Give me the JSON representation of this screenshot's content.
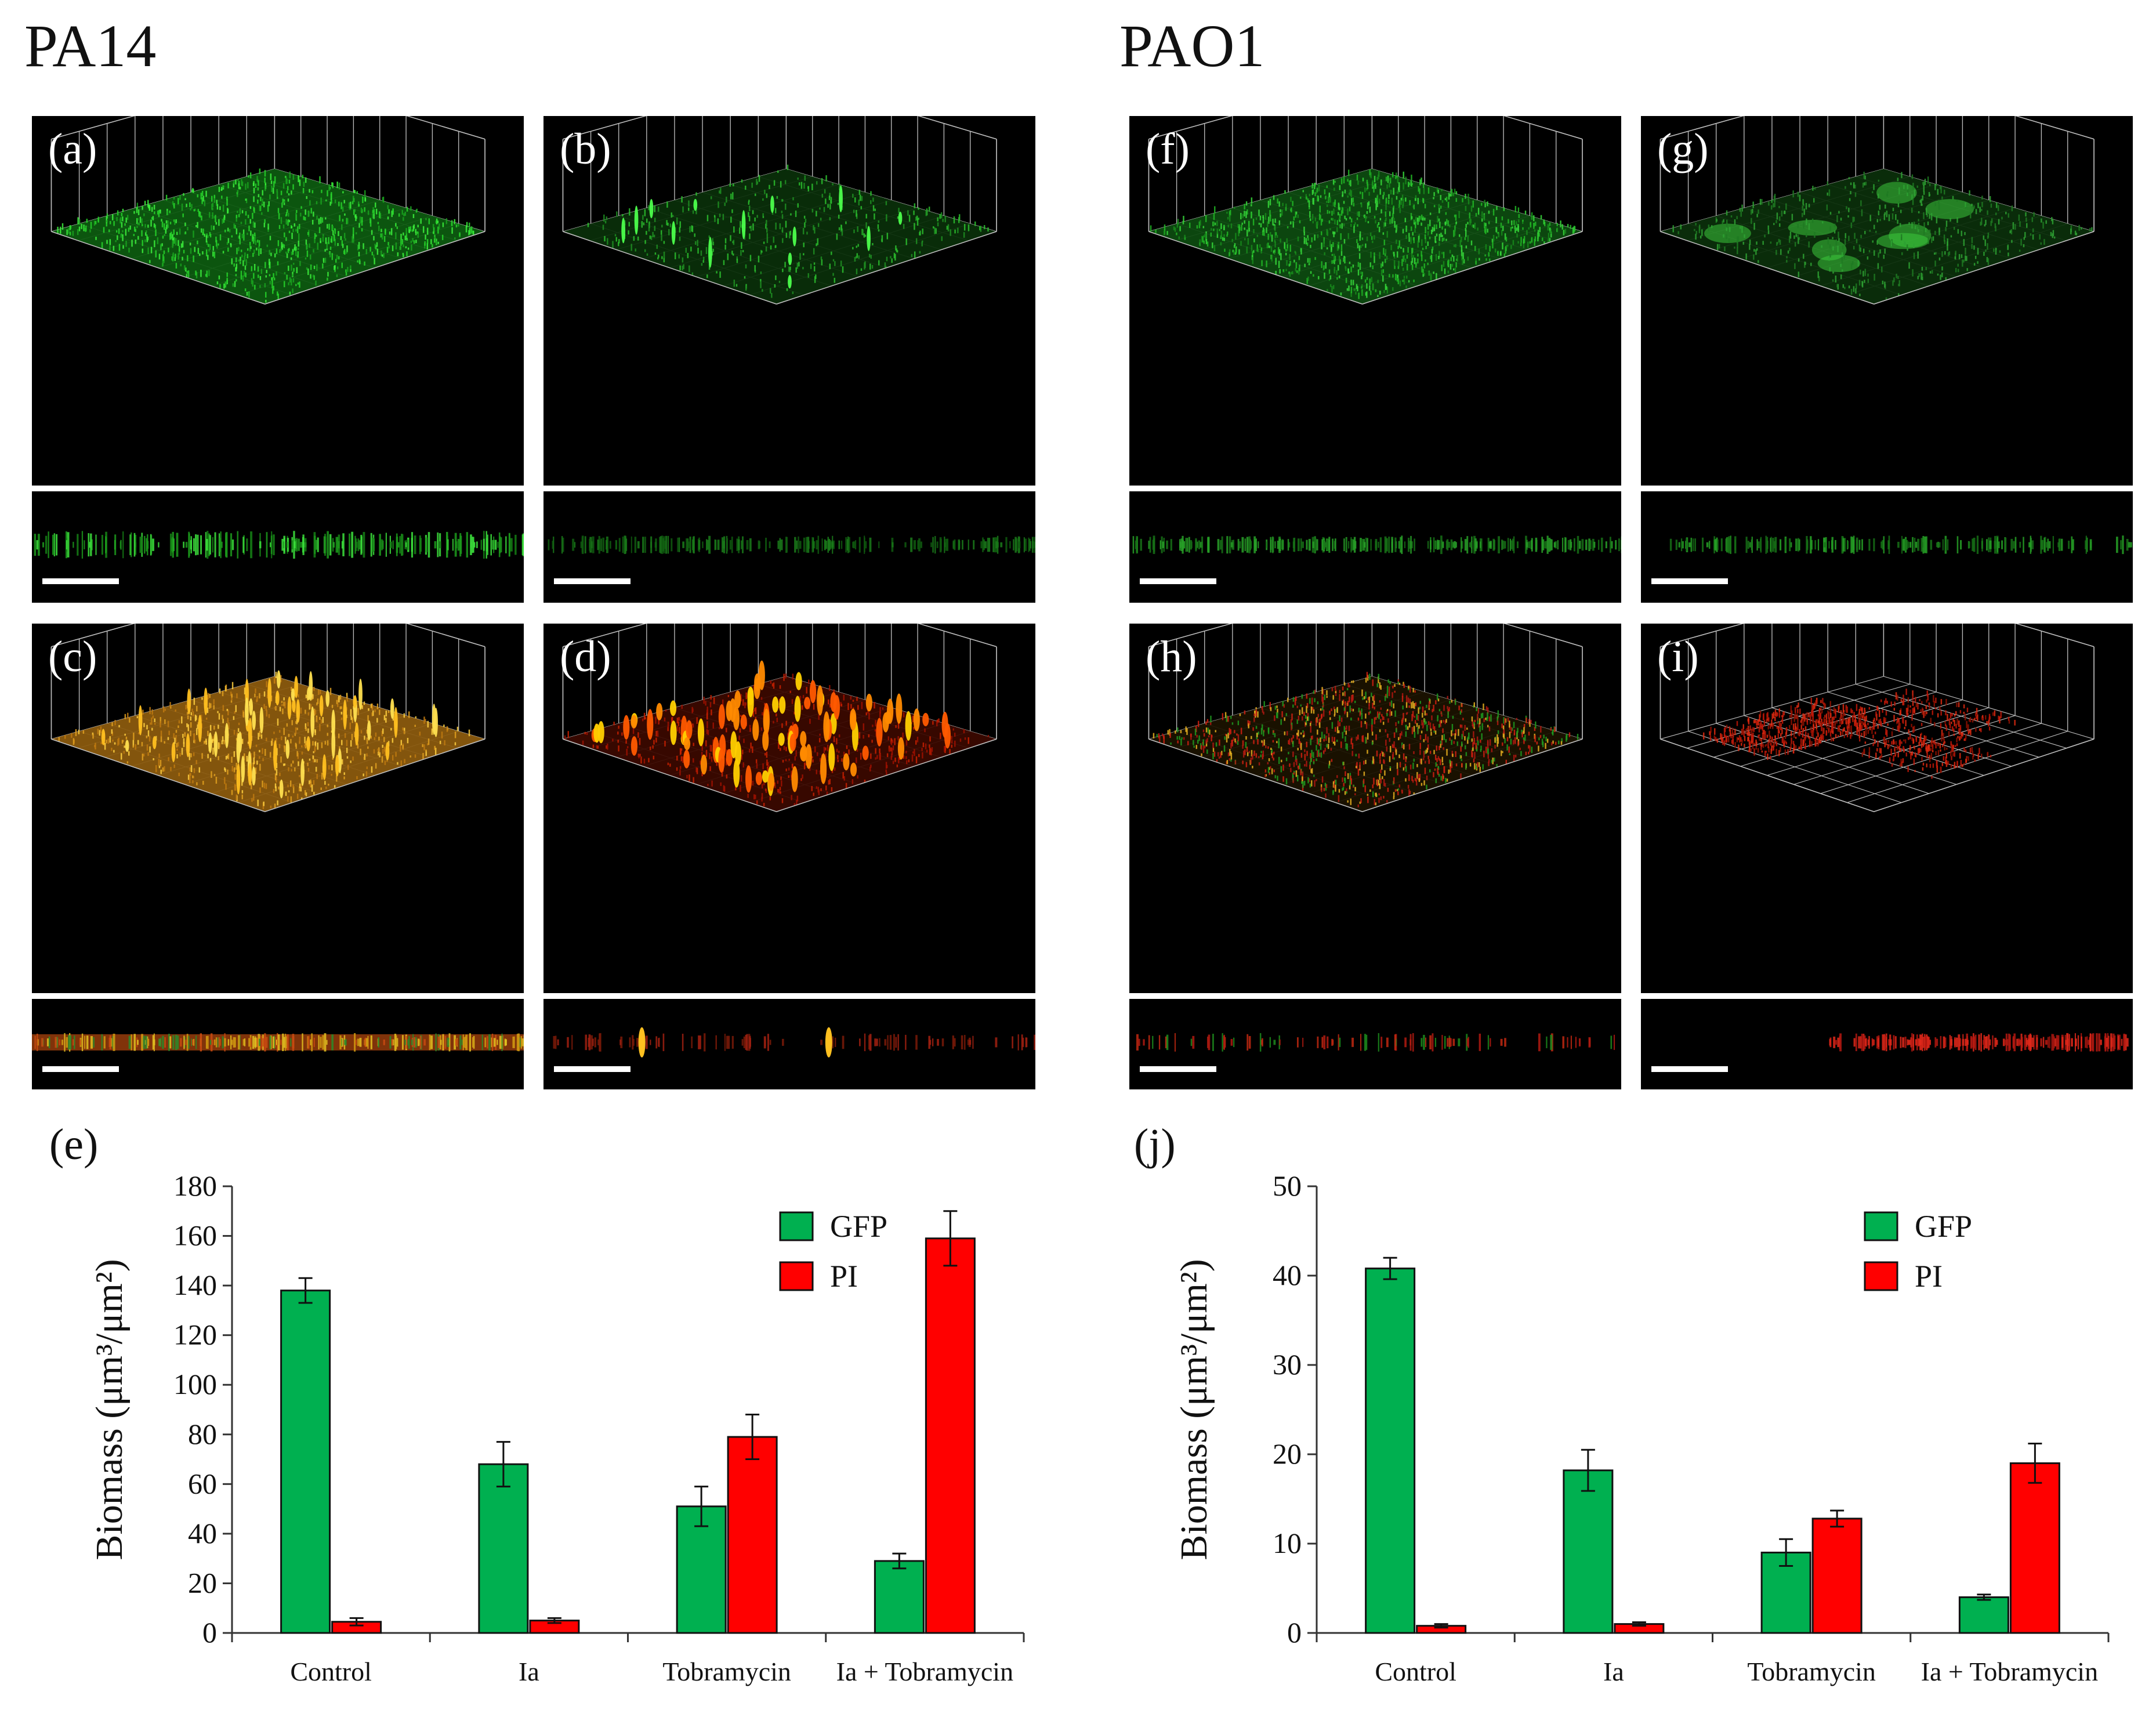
{
  "headers": {
    "left": "PA14",
    "right": "PAO1"
  },
  "panels": [
    {
      "id": "a",
      "label": "(a)",
      "style": "green-dense"
    },
    {
      "id": "b",
      "label": "(b)",
      "style": "green-sparse"
    },
    {
      "id": "c",
      "label": "(c)",
      "style": "orange"
    },
    {
      "id": "d",
      "label": "(d)",
      "style": "red-spikes"
    },
    {
      "id": "f",
      "label": "(f)",
      "style": "green-fine"
    },
    {
      "id": "g",
      "label": "(g)",
      "style": "green-blotchy"
    },
    {
      "id": "h",
      "label": "(h)",
      "style": "mixed"
    },
    {
      "id": "i",
      "label": "(i)",
      "style": "red-patchy"
    }
  ],
  "colors": {
    "gfp": "#00b050",
    "pi": "#ff0000"
  },
  "chart_data": [
    {
      "label": "(e)",
      "type": "bar",
      "categories": [
        "Control",
        "Ia",
        "Tobramycin",
        "Ia + Tobramycin"
      ],
      "series": [
        {
          "name": "GFP",
          "values": [
            138,
            68,
            51,
            29
          ],
          "errors": [
            5,
            9,
            8,
            3
          ]
        },
        {
          "name": "PI",
          "values": [
            4.5,
            5,
            79,
            159
          ],
          "errors": [
            1.5,
            1,
            9,
            11
          ]
        }
      ],
      "ylabel": "Biomass (μm³/μm²)",
      "ylim": [
        0,
        180
      ],
      "yticks": [
        "0",
        "20",
        "40",
        "60",
        "80",
        "100",
        "120",
        "140",
        "160",
        "180"
      ],
      "legend": "top-right"
    },
    {
      "label": "(j)",
      "type": "bar",
      "categories": [
        "Control",
        "Ia",
        "Tobramycin",
        "Ia + Tobramycin"
      ],
      "series": [
        {
          "name": "GFP",
          "values": [
            40.8,
            18.2,
            9,
            4
          ],
          "errors": [
            1.2,
            2.3,
            1.5,
            0.3
          ]
        },
        {
          "name": "PI",
          "values": [
            0.8,
            1,
            12.8,
            19
          ],
          "errors": [
            0.2,
            0.2,
            0.9,
            2.2
          ]
        }
      ],
      "ylabel": "Biomass (μm³/μm²)",
      "ylim": [
        0,
        50
      ],
      "yticks": [
        "0",
        "10",
        "20",
        "30",
        "40",
        "50"
      ],
      "legend": "top-right"
    }
  ]
}
